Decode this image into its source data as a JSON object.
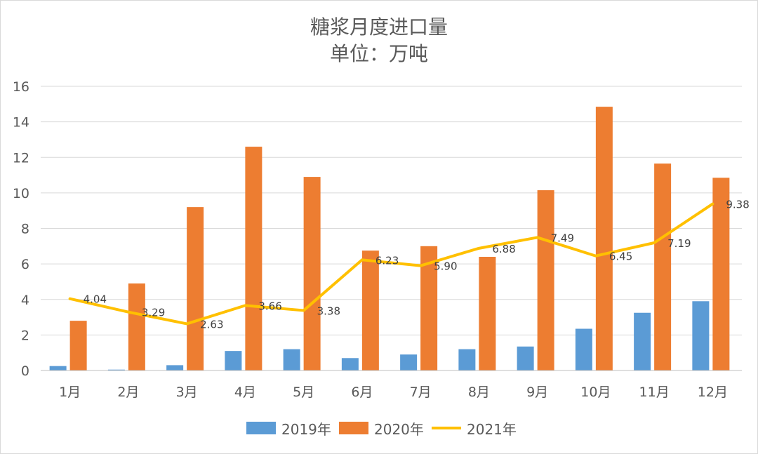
{
  "chart_data": {
    "type": "bar",
    "title": "糖浆月度进口量",
    "subtitle": "单位：万吨",
    "xlabel": "",
    "ylabel": "",
    "ylim": [
      0,
      16
    ],
    "yticks": [
      0,
      2,
      4,
      6,
      8,
      10,
      12,
      14,
      16
    ],
    "grid": true,
    "legend_position": "bottom",
    "categories": [
      "1月",
      "2月",
      "3月",
      "4月",
      "5月",
      "6月",
      "7月",
      "8月",
      "9月",
      "10月",
      "11月",
      "12月"
    ],
    "series": [
      {
        "name": "2019年",
        "type": "bar",
        "color": "#5b9bd5",
        "values": [
          0.25,
          0.05,
          0.3,
          1.1,
          1.2,
          0.7,
          0.9,
          1.2,
          1.35,
          2.35,
          3.25,
          3.9
        ]
      },
      {
        "name": "2020年",
        "type": "bar",
        "color": "#ed7d31",
        "values": [
          2.8,
          4.9,
          9.2,
          12.6,
          10.9,
          6.75,
          7.0,
          6.4,
          10.15,
          14.85,
          11.65,
          10.85
        ]
      },
      {
        "name": "2021年",
        "type": "line",
        "color": "#ffc000",
        "values": [
          4.04,
          3.29,
          2.63,
          3.66,
          3.38,
          6.23,
          5.9,
          6.88,
          7.49,
          6.45,
          7.19,
          9.38
        ],
        "labels": [
          "4.04",
          "3.29",
          "2.63",
          "3.66",
          "3.38",
          "6.23",
          "5.90",
          "6.88",
          "7.49",
          "6.45",
          "7.19",
          "9.38"
        ]
      }
    ]
  }
}
